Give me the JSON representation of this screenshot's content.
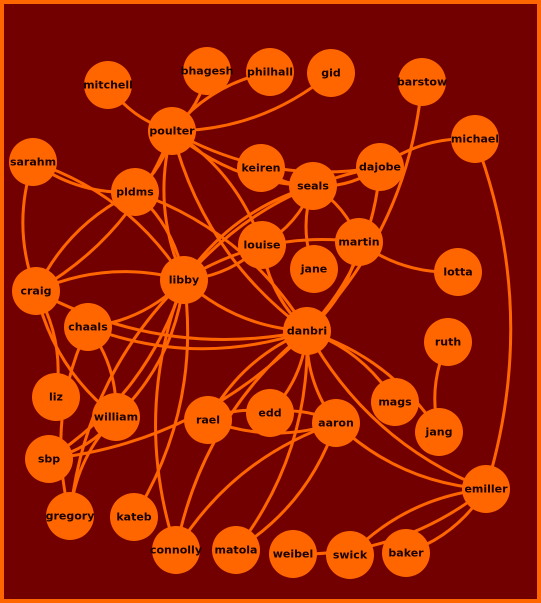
{
  "colors": {
    "background": "#720000",
    "border": "#ff6600",
    "node": "#ff6600",
    "edge": "#ff6600",
    "label": "#1a0000"
  },
  "nodes": [
    {
      "id": "mitchell",
      "label": "mitchell"
    },
    {
      "id": "bhagesh",
      "label": "bhagesh"
    },
    {
      "id": "philhall",
      "label": "philhall"
    },
    {
      "id": "gid",
      "label": "gid"
    },
    {
      "id": "barstow",
      "label": "barstow"
    },
    {
      "id": "michael",
      "label": "michael"
    },
    {
      "id": "poulter",
      "label": "poulter"
    },
    {
      "id": "sarahm",
      "label": "sarahm"
    },
    {
      "id": "dajobe",
      "label": "dajobe"
    },
    {
      "id": "keiren",
      "label": "keiren"
    },
    {
      "id": "seals",
      "label": "seals"
    },
    {
      "id": "pldms",
      "label": "pldms"
    },
    {
      "id": "louise",
      "label": "louise"
    },
    {
      "id": "martin",
      "label": "martin"
    },
    {
      "id": "jane",
      "label": "jane"
    },
    {
      "id": "lotta",
      "label": "lotta"
    },
    {
      "id": "craig",
      "label": "craig"
    },
    {
      "id": "libby",
      "label": "libby"
    },
    {
      "id": "chaals",
      "label": "chaals"
    },
    {
      "id": "danbri",
      "label": "danbri"
    },
    {
      "id": "ruth",
      "label": "ruth"
    },
    {
      "id": "liz",
      "label": "liz"
    },
    {
      "id": "mags",
      "label": "mags"
    },
    {
      "id": "william",
      "label": "william"
    },
    {
      "id": "rael",
      "label": "rael"
    },
    {
      "id": "edd",
      "label": "edd"
    },
    {
      "id": "aaron",
      "label": "aaron"
    },
    {
      "id": "jang",
      "label": "jang"
    },
    {
      "id": "sbp",
      "label": "sbp"
    },
    {
      "id": "emiller",
      "label": "emiller"
    },
    {
      "id": "gregory",
      "label": "gregory"
    },
    {
      "id": "kateb",
      "label": "kateb"
    },
    {
      "id": "connolly",
      "label": "connolly"
    },
    {
      "id": "matola",
      "label": "matola"
    },
    {
      "id": "weibel",
      "label": "weibel"
    },
    {
      "id": "swick",
      "label": "swick"
    },
    {
      "id": "baker",
      "label": "baker"
    }
  ],
  "edges": [
    [
      "mitchell",
      "poulter"
    ],
    [
      "bhagesh",
      "poulter"
    ],
    [
      "philhall",
      "poulter"
    ],
    [
      "gid",
      "poulter"
    ],
    [
      "poulter",
      "dajobe"
    ],
    [
      "poulter",
      "craig"
    ],
    [
      "poulter",
      "libby"
    ],
    [
      "poulter",
      "pldms"
    ],
    [
      "poulter",
      "danbri"
    ],
    [
      "poulter",
      "louise"
    ],
    [
      "poulter",
      "seals"
    ],
    [
      "barstow",
      "danbri"
    ],
    [
      "michael",
      "dajobe"
    ],
    [
      "michael",
      "emiller"
    ],
    [
      "sarahm",
      "pldms"
    ],
    [
      "sarahm",
      "libby"
    ],
    [
      "sarahm",
      "craig"
    ],
    [
      "dajobe",
      "danbri"
    ],
    [
      "dajobe",
      "libby"
    ],
    [
      "dajobe",
      "seals"
    ],
    [
      "keiren",
      "seals"
    ],
    [
      "seals",
      "louise"
    ],
    [
      "seals",
      "jane"
    ],
    [
      "seals",
      "martin"
    ],
    [
      "seals",
      "libby"
    ],
    [
      "pldms",
      "libby"
    ],
    [
      "pldms",
      "craig"
    ],
    [
      "pldms",
      "danbri"
    ],
    [
      "louise",
      "danbri"
    ],
    [
      "louise",
      "libby"
    ],
    [
      "martin",
      "lotta"
    ],
    [
      "martin",
      "danbri"
    ],
    [
      "martin",
      "libby"
    ],
    [
      "craig",
      "libby"
    ],
    [
      "craig",
      "danbri"
    ],
    [
      "craig",
      "liz"
    ],
    [
      "craig",
      "william"
    ],
    [
      "libby",
      "chaals"
    ],
    [
      "libby",
      "danbri"
    ],
    [
      "libby",
      "william"
    ],
    [
      "libby",
      "gregory"
    ],
    [
      "libby",
      "kateb"
    ],
    [
      "libby",
      "connolly"
    ],
    [
      "libby",
      "sbp"
    ],
    [
      "chaals",
      "danbri"
    ],
    [
      "chaals",
      "william"
    ],
    [
      "chaals",
      "gregory"
    ],
    [
      "danbri",
      "mags"
    ],
    [
      "danbri",
      "rael"
    ],
    [
      "danbri",
      "edd"
    ],
    [
      "danbri",
      "aaron"
    ],
    [
      "danbri",
      "jang"
    ],
    [
      "danbri",
      "emiller"
    ],
    [
      "danbri",
      "matola"
    ],
    [
      "danbri",
      "connolly"
    ],
    [
      "danbri",
      "sbp"
    ],
    [
      "ruth",
      "jang"
    ],
    [
      "william",
      "sbp"
    ],
    [
      "william",
      "gregory"
    ],
    [
      "rael",
      "edd"
    ],
    [
      "rael",
      "aaron"
    ],
    [
      "edd",
      "aaron"
    ],
    [
      "aaron",
      "connolly"
    ],
    [
      "aaron",
      "matola"
    ],
    [
      "aaron",
      "emiller"
    ],
    [
      "emiller",
      "weibel"
    ],
    [
      "emiller",
      "swick"
    ],
    [
      "emiller",
      "baker"
    ]
  ]
}
